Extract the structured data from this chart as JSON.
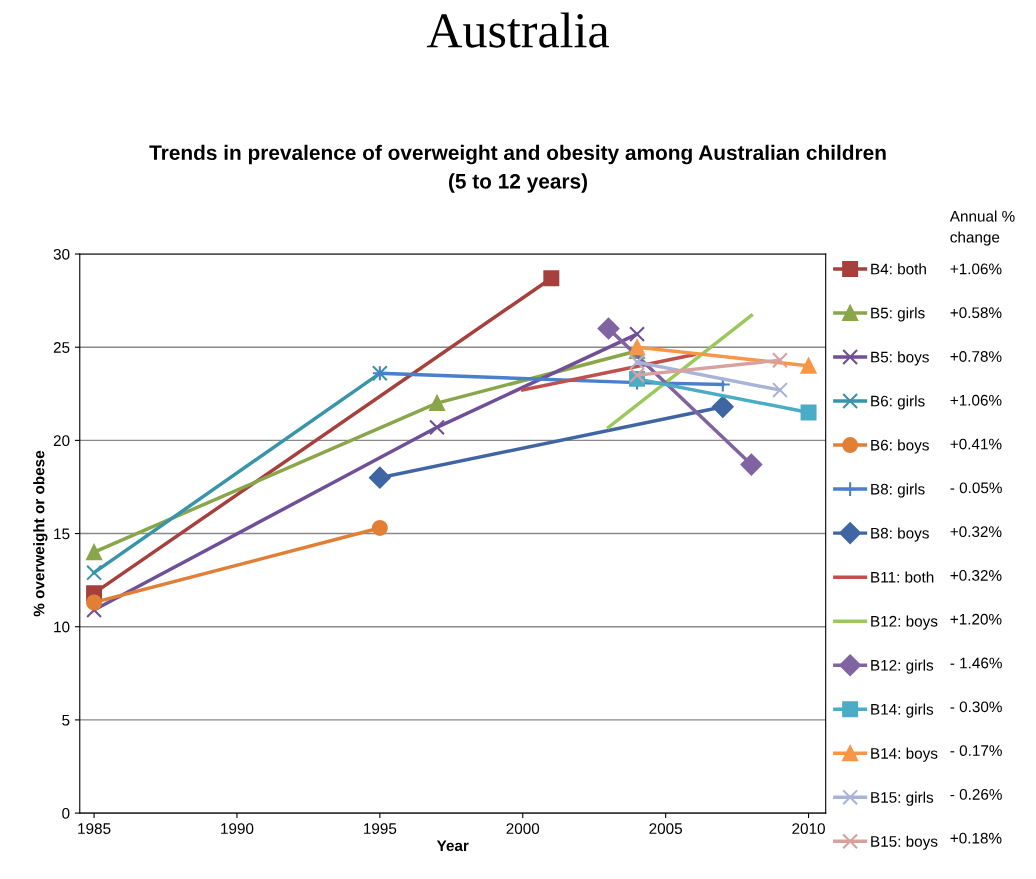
{
  "chart_data": {
    "type": "line",
    "title": "Australia",
    "subtitle": "Trends in prevalence of overweight and obesity among Australian children\n(5 to 12 years)",
    "xlabel": "Year",
    "ylabel": "% overweight or obese",
    "xlim": [
      1984.5,
      2010.6
    ],
    "xticks": [
      1985,
      1990,
      1995,
      2000,
      2005,
      2010
    ],
    "ylim": [
      0,
      30
    ],
    "yticks": [
      0,
      5,
      10,
      15,
      20,
      25,
      30
    ],
    "grid": "y",
    "legend": "right",
    "line_style": "solid",
    "series": [
      {
        "name": "B4: both",
        "color": "#a5403d",
        "marker": "square",
        "x": [
          1985,
          2001
        ],
        "values": [
          11.8,
          28.7
        ]
      },
      {
        "name": "B5: girls",
        "color": "#8aa64a",
        "marker": "triangle",
        "x": [
          1985,
          1997,
          2004
        ],
        "values": [
          14.0,
          22.0,
          24.8
        ]
      },
      {
        "name": "B5: boys",
        "color": "#6f4f96",
        "marker": "cross",
        "x": [
          1985,
          1997,
          2004
        ],
        "values": [
          10.9,
          20.7,
          25.7
        ]
      },
      {
        "name": "B6: girls",
        "color": "#3894a8",
        "marker": "cross",
        "x": [
          1985,
          1995
        ],
        "values": [
          12.9,
          23.6
        ]
      },
      {
        "name": "B6: boys",
        "color": "#e07f35",
        "marker": "circle",
        "x": [
          1985,
          1995
        ],
        "values": [
          11.3,
          15.3
        ]
      },
      {
        "name": "B8: girls",
        "color": "#4a7fcb",
        "marker": "plus",
        "x": [
          1995,
          2004,
          2007
        ],
        "values": [
          23.6,
          23.1,
          23.0
        ]
      },
      {
        "name": "B8: boys",
        "color": "#3f66a2",
        "marker": "diamond",
        "x": [
          1995,
          2007
        ],
        "values": [
          18.0,
          21.8
        ]
      },
      {
        "name": "B11: both",
        "color": "#c0504d",
        "marker": "none",
        "x": [
          2000,
          2006
        ],
        "values": [
          22.7,
          24.6
        ]
      },
      {
        "name": "B12: boys",
        "color": "#9bc85a",
        "marker": "none",
        "x": [
          2003,
          2008
        ],
        "values": [
          20.7,
          26.7
        ]
      },
      {
        "name": "B12: girls",
        "color": "#8064a2",
        "marker": "diamond",
        "x": [
          2003,
          2008
        ],
        "values": [
          26.0,
          18.7
        ]
      },
      {
        "name": "B14: girls",
        "color": "#4bacc6",
        "marker": "square",
        "x": [
          2004,
          2010
        ],
        "values": [
          23.3,
          21.5
        ]
      },
      {
        "name": "B14: boys",
        "color": "#f79646",
        "marker": "triangle",
        "x": [
          2004,
          2010
        ],
        "values": [
          25.0,
          24.0
        ]
      },
      {
        "name": "B15: girls",
        "color": "#a9b3d8",
        "marker": "cross",
        "x": [
          2004,
          2009
        ],
        "values": [
          24.2,
          22.7
        ]
      },
      {
        "name": "B15: boys",
        "color": "#d9a0a0",
        "marker": "cross",
        "x": [
          2004,
          2009
        ],
        "values": [
          23.5,
          24.3
        ]
      }
    ],
    "annotations": [
      "Annual %\nchange",
      "+1.06%",
      "+0.58%",
      "+0.78%",
      "+1.06%",
      "+0.41%",
      "- 0.05%",
      "+0.32%",
      "+0.32%",
      "+1.20%",
      "- 1.46%",
      "- 0.30%",
      "- 0.17%",
      "- 0.26%",
      "+0.18%"
    ]
  }
}
